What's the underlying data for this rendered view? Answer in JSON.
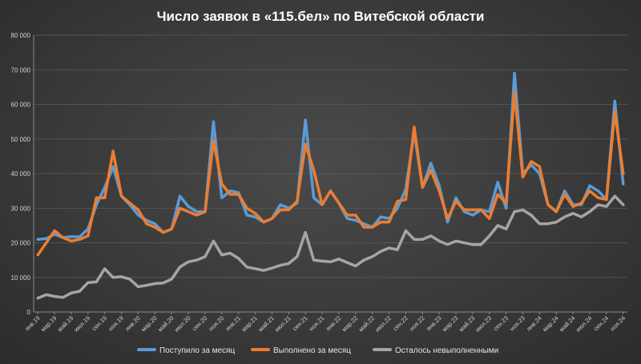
{
  "chart_data": {
    "type": "line",
    "title": "Число заявок в «115.бел» по Витебской области",
    "xlabel": "",
    "ylabel": "",
    "ylim": [
      0,
      80000
    ],
    "yticks": [
      0,
      10000,
      20000,
      30000,
      40000,
      50000,
      60000,
      70000,
      80000
    ],
    "ytick_labels": [
      "0",
      "10 000",
      "20 000",
      "30 000",
      "40 000",
      "50 000",
      "60 000",
      "70 000",
      "80 000"
    ],
    "grid": true,
    "legend_position": "bottom",
    "x_tick_labels": [
      "янв.19",
      "мар.19",
      "май.19",
      "июл.19",
      "сен.19",
      "ноя.19",
      "янв.20",
      "мар.20",
      "май.20",
      "июл.20",
      "сен.20",
      "ноя.20",
      "янв.21",
      "мар.21",
      "май.21",
      "июл.21",
      "сен.21",
      "ноя.21",
      "янв.22",
      "мар.22",
      "май.22",
      "июл.22",
      "сен.22",
      "ноя.22",
      "янв.23",
      "мар.23",
      "май.23",
      "июл.23",
      "сен.23",
      "ноя.23",
      "янв.24",
      "мар.24",
      "май.24",
      "июл.24",
      "сен.24",
      "ноя.24"
    ],
    "months": 71,
    "series": [
      {
        "name": "Поступило за месяц",
        "color": "#5b9bd5",
        "values": [
          21000,
          21200,
          22500,
          21500,
          21800,
          21700,
          24000,
          31000,
          36000,
          42000,
          33500,
          31000,
          28000,
          26500,
          25500,
          23000,
          24000,
          33500,
          30500,
          29000,
          29000,
          55000,
          33000,
          35000,
          34500,
          28000,
          27500,
          26000,
          27000,
          31000,
          30000,
          31500,
          55500,
          33000,
          31000,
          35000,
          31500,
          27000,
          26500,
          25500,
          24500,
          27500,
          27000,
          30000,
          35500,
          52000,
          36000,
          43000,
          36500,
          26000,
          33000,
          29000,
          28000,
          29500,
          29000,
          37500,
          30000,
          69000,
          40000,
          42500,
          40000,
          31000,
          29000,
          35000,
          31000,
          31000,
          36500,
          35000,
          32500,
          61000,
          37000
        ]
      },
      {
        "name": "Выполнено за месяц",
        "color": "#ed7d31",
        "values": [
          16500,
          20000,
          23500,
          21500,
          20500,
          21000,
          22000,
          33000,
          33000,
          46500,
          33500,
          31500,
          29500,
          25500,
          24500,
          23000,
          24000,
          30000,
          29000,
          28000,
          29000,
          49500,
          37000,
          34000,
          34000,
          30000,
          28500,
          26000,
          27000,
          29500,
          29500,
          32000,
          48500,
          41000,
          31000,
          35000,
          31500,
          28000,
          28000,
          24500,
          24500,
          26000,
          26000,
          32000,
          32500,
          53500,
          36000,
          41000,
          35000,
          27000,
          32000,
          29500,
          29500,
          29500,
          27000,
          34000,
          31500,
          63500,
          39000,
          43500,
          42000,
          31000,
          29000,
          34000,
          30500,
          31500,
          35000,
          33000,
          32500,
          58000,
          40000
        ]
      },
      {
        "name": "Осталось невыполненными",
        "color": "#a5a5a5",
        "values": [
          4000,
          5000,
          4500,
          4200,
          5500,
          6000,
          8500,
          8700,
          12500,
          10000,
          10200,
          9500,
          7300,
          7700,
          8200,
          8400,
          9500,
          13000,
          14500,
          15000,
          16000,
          20500,
          16500,
          17000,
          15500,
          13000,
          12500,
          12000,
          12700,
          13500,
          14000,
          16000,
          23000,
          15000,
          14700,
          14500,
          15300,
          14300,
          13300,
          15000,
          16000,
          17500,
          18500,
          18000,
          23500,
          21000,
          21000,
          22000,
          20500,
          19500,
          20500,
          20000,
          19500,
          19500,
          22000,
          25000,
          24000,
          29000,
          29500,
          28000,
          25500,
          25500,
          26000,
          27500,
          28500,
          27500,
          29000,
          31000,
          30500,
          33500,
          31000
        ]
      }
    ]
  }
}
